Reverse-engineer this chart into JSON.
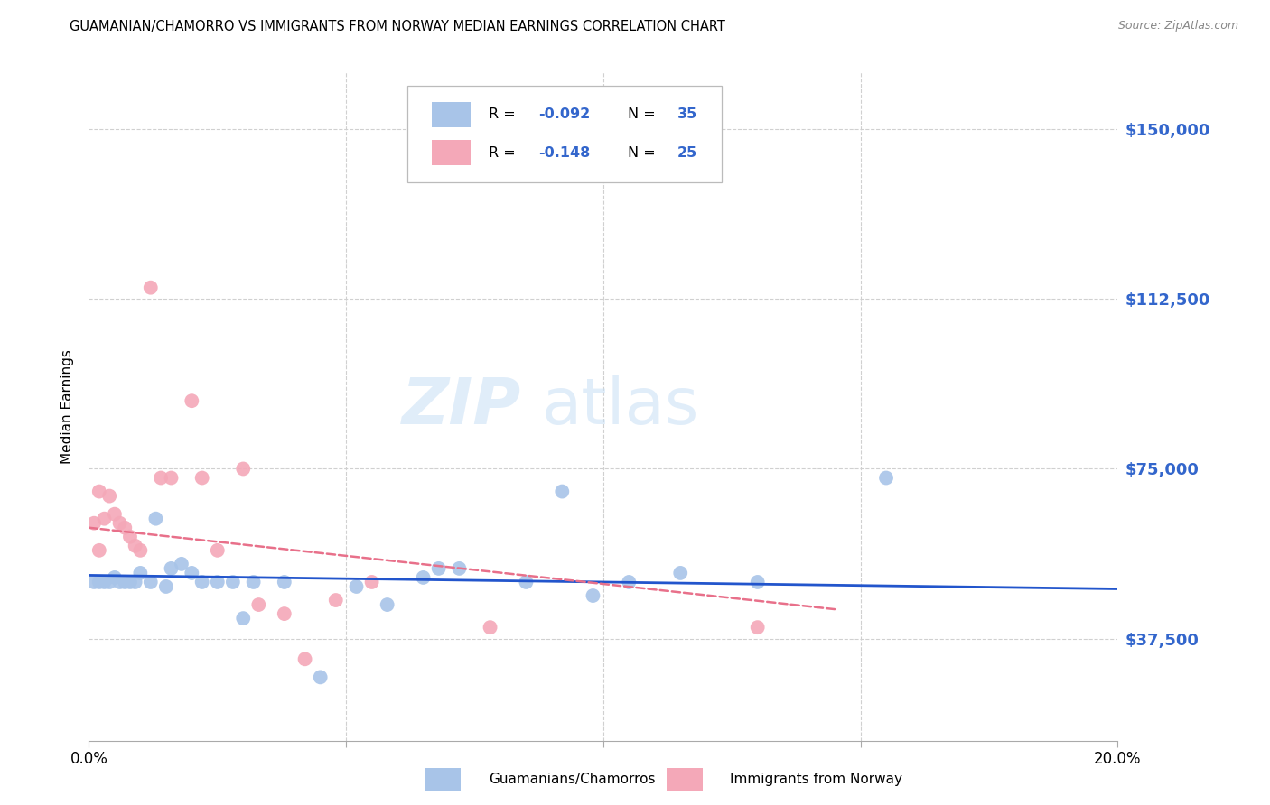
{
  "title": "GUAMANIAN/CHAMORRO VS IMMIGRANTS FROM NORWAY MEDIAN EARNINGS CORRELATION CHART",
  "source": "Source: ZipAtlas.com",
  "ylabel": "Median Earnings",
  "y_ticks": [
    37500,
    75000,
    112500,
    150000
  ],
  "y_tick_labels": [
    "$37,500",
    "$75,000",
    "$112,500",
    "$150,000"
  ],
  "x_min": 0.0,
  "x_max": 0.2,
  "y_min": 15000,
  "y_max": 162500,
  "blue_R": "-0.092",
  "blue_N": "35",
  "pink_R": "-0.148",
  "pink_N": "25",
  "blue_color": "#a8c4e8",
  "pink_color": "#f4a8b8",
  "blue_line_color": "#2255cc",
  "pink_line_color": "#e8708a",
  "watermark_color": "#c8dff5",
  "legend_label_blue": "Guamanians/Chamorros",
  "legend_label_pink": "Immigrants from Norway",
  "blue_points_x": [
    0.001,
    0.002,
    0.003,
    0.004,
    0.005,
    0.006,
    0.007,
    0.008,
    0.009,
    0.01,
    0.012,
    0.013,
    0.015,
    0.016,
    0.018,
    0.02,
    0.022,
    0.025,
    0.028,
    0.03,
    0.032,
    0.038,
    0.045,
    0.052,
    0.058,
    0.065,
    0.068,
    0.072,
    0.085,
    0.092,
    0.098,
    0.105,
    0.115,
    0.13,
    0.155
  ],
  "blue_points_y": [
    50000,
    50000,
    50000,
    50000,
    51000,
    50000,
    50000,
    50000,
    50000,
    52000,
    50000,
    64000,
    49000,
    53000,
    54000,
    52000,
    50000,
    50000,
    50000,
    42000,
    50000,
    50000,
    29000,
    49000,
    45000,
    51000,
    53000,
    53000,
    50000,
    70000,
    47000,
    50000,
    52000,
    50000,
    73000
  ],
  "pink_points_x": [
    0.001,
    0.002,
    0.003,
    0.004,
    0.005,
    0.006,
    0.007,
    0.008,
    0.009,
    0.01,
    0.012,
    0.014,
    0.016,
    0.02,
    0.022,
    0.025,
    0.03,
    0.033,
    0.038,
    0.042,
    0.048,
    0.055,
    0.078,
    0.13,
    0.002
  ],
  "pink_points_y": [
    63000,
    70000,
    64000,
    69000,
    65000,
    63000,
    62000,
    60000,
    58000,
    57000,
    115000,
    73000,
    73000,
    90000,
    73000,
    57000,
    75000,
    45000,
    43000,
    33000,
    46000,
    50000,
    40000,
    40000,
    57000
  ]
}
